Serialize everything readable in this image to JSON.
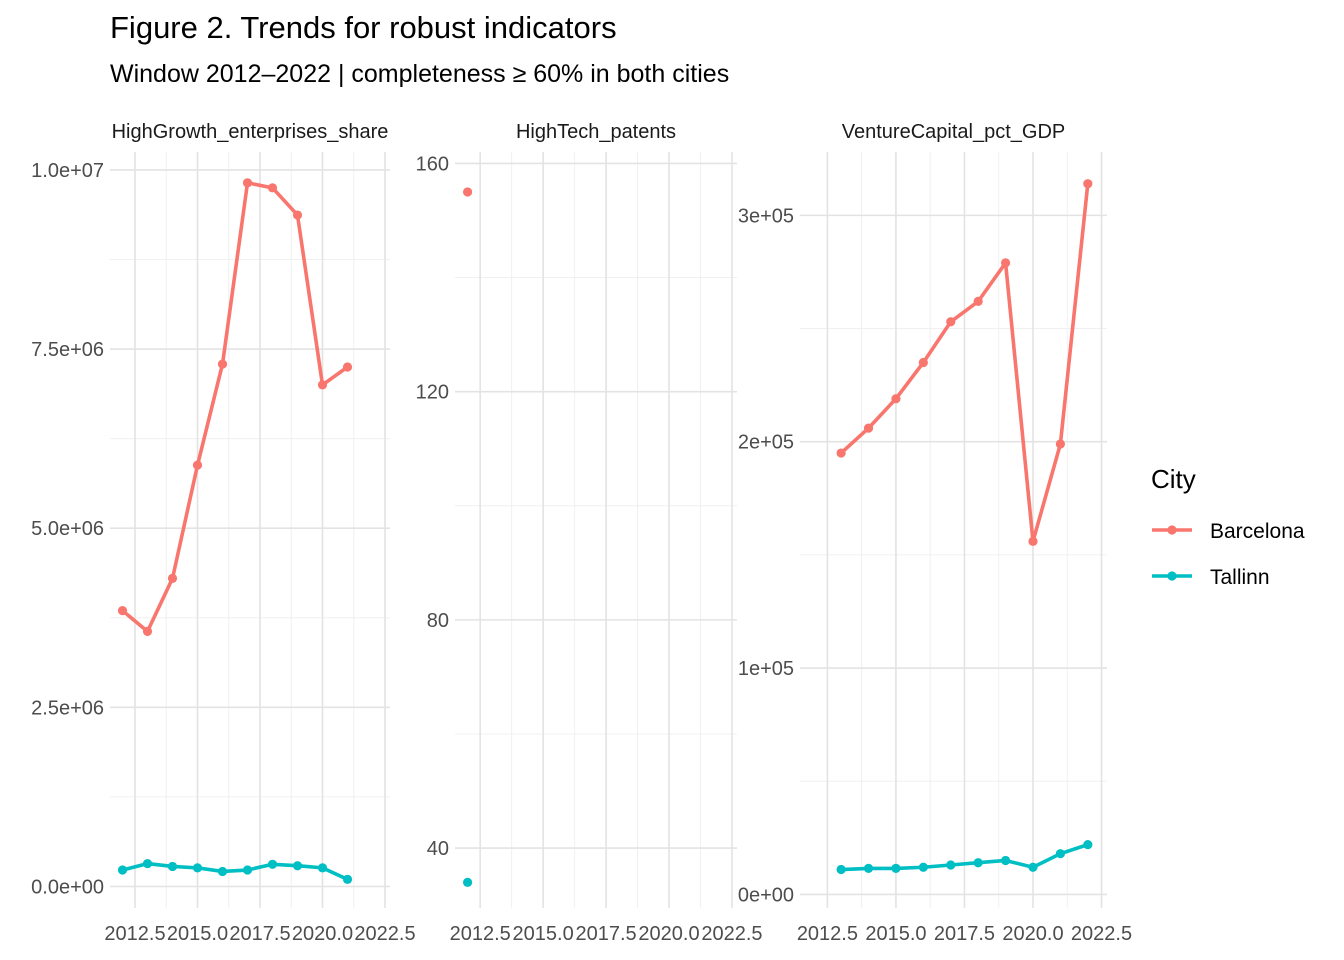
{
  "title": "Figure 2. Trends for robust indicators",
  "subtitle": "Window 2012–2022 | completeness ≥ 60% in both cities",
  "legend": {
    "title": "City",
    "items": [
      {
        "label": "Barcelona",
        "color": "#F8766D"
      },
      {
        "label": "Tallinn",
        "color": "#00BFC4"
      }
    ]
  },
  "chart_data": [
    {
      "type": "line",
      "panel_title": "HighGrowth_enterprises_share",
      "xlim": [
        2011.5,
        2022.7
      ],
      "ylim": [
        -300000,
        10250000
      ],
      "x_ticks": [
        2012.5,
        2015.0,
        2017.5,
        2020.0,
        2022.5
      ],
      "x_tick_labels": [
        "2012.5",
        "2015.0",
        "2017.5",
        "2020.0",
        "2022.5"
      ],
      "y_ticks": [
        0,
        2500000,
        5000000,
        7500000,
        10000000
      ],
      "y_tick_labels": [
        "0.0e+00",
        "2.5e+06",
        "5.0e+06",
        "7.5e+06",
        "1.0e+07"
      ],
      "series": [
        {
          "name": "Barcelona",
          "color": "#F8766D",
          "x": [
            2012,
            2013,
            2014,
            2015,
            2016,
            2017,
            2018,
            2019,
            2020,
            2021
          ],
          "values": [
            3850000,
            3560000,
            4300000,
            5880000,
            7290000,
            9820000,
            9750000,
            9370000,
            7000000,
            7250000
          ]
        },
        {
          "name": "Tallinn",
          "color": "#00BFC4",
          "x": [
            2012,
            2013,
            2014,
            2015,
            2016,
            2017,
            2018,
            2019,
            2020,
            2021
          ],
          "values": [
            230000,
            320000,
            280000,
            260000,
            210000,
            230000,
            310000,
            290000,
            260000,
            100000
          ]
        }
      ]
    },
    {
      "type": "scatter",
      "panel_title": "HighTech_patents",
      "xlim": [
        2011.5,
        2022.7
      ],
      "ylim": [
        29.5,
        162
      ],
      "x_ticks": [
        2012.5,
        2015.0,
        2017.5,
        2020.0,
        2022.5
      ],
      "x_tick_labels": [
        "2012.5",
        "2015.0",
        "2017.5",
        "2020.0",
        "2022.5"
      ],
      "y_ticks": [
        40,
        80,
        120,
        160
      ],
      "y_tick_labels": [
        "40",
        "80",
        "120",
        "160"
      ],
      "series": [
        {
          "name": "Barcelona",
          "color": "#F8766D",
          "x": [
            2012
          ],
          "values": [
            155
          ]
        },
        {
          "name": "Tallinn",
          "color": "#00BFC4",
          "x": [
            2012
          ],
          "values": [
            34
          ]
        }
      ]
    },
    {
      "type": "line",
      "panel_title": "VentureCapital_pct_GDP",
      "xlim": [
        2011.5,
        2022.7
      ],
      "ylim": [
        -6000,
        328000
      ],
      "x_ticks": [
        2012.5,
        2015.0,
        2017.5,
        2020.0,
        2022.5
      ],
      "x_tick_labels": [
        "2012.5",
        "2015.0",
        "2017.5",
        "2020.0",
        "2022.5"
      ],
      "y_ticks": [
        0,
        100000,
        200000,
        300000
      ],
      "y_tick_labels": [
        "0e+00",
        "1e+05",
        "2e+05",
        "3e+05"
      ],
      "series": [
        {
          "name": "Barcelona",
          "color": "#F8766D",
          "x": [
            2013,
            2014,
            2015,
            2016,
            2017,
            2018,
            2019,
            2020,
            2021,
            2022
          ],
          "values": [
            195000,
            206000,
            219000,
            235000,
            253000,
            262000,
            279000,
            156000,
            199000,
            314000
          ]
        },
        {
          "name": "Tallinn",
          "color": "#00BFC4",
          "x": [
            2013,
            2014,
            2015,
            2016,
            2017,
            2018,
            2019,
            2020,
            2021,
            2022
          ],
          "values": [
            11000,
            11500,
            11500,
            12000,
            13000,
            14000,
            15000,
            12000,
            18000,
            22000
          ]
        }
      ]
    }
  ]
}
